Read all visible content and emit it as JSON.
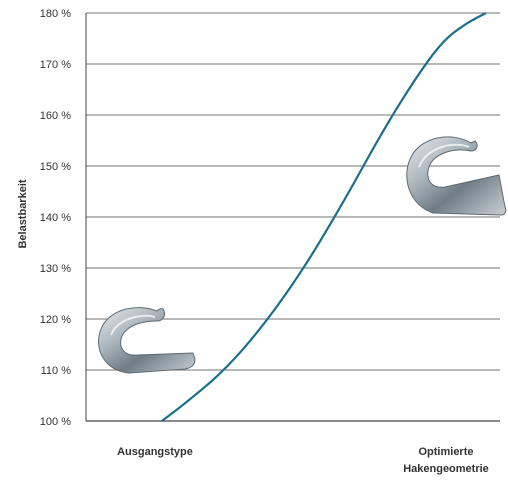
{
  "chart_data": {
    "type": "line",
    "title": "",
    "xlabel": "",
    "ylabel": "Belastbarkeit",
    "ylim": [
      100,
      180
    ],
    "yticks": [
      100,
      110,
      120,
      130,
      140,
      150,
      160,
      170,
      180
    ],
    "ytick_suffix": " %",
    "grid": true,
    "categories": [
      "Ausgangstype",
      "Optimierte Hakengeometrie"
    ],
    "category_lines": [
      [
        "Ausgangstype"
      ],
      [
        "Optimierte",
        "Hakengeometrie"
      ]
    ],
    "series": [
      {
        "color": "#1a6f8f",
        "x": [
          0.2,
          0.5,
          1.0,
          1.5,
          2.0,
          2.5,
          3.0,
          3.4,
          3.75,
          4.05,
          4.3
        ],
        "y": [
          100,
          103.5,
          110,
          119,
          130,
          143,
          157,
          167,
          174.5,
          178,
          180
        ]
      }
    ],
    "x_range": [
      0,
      4.3
    ]
  },
  "images": [
    {
      "name": "initial-hook-icon",
      "description": "steel hook (original type)"
    },
    {
      "name": "optimized-hook-icon",
      "description": "steel hook (optimized geometry)"
    }
  ],
  "colors": {
    "line": "#1a6f8f",
    "grid": "#444444"
  }
}
